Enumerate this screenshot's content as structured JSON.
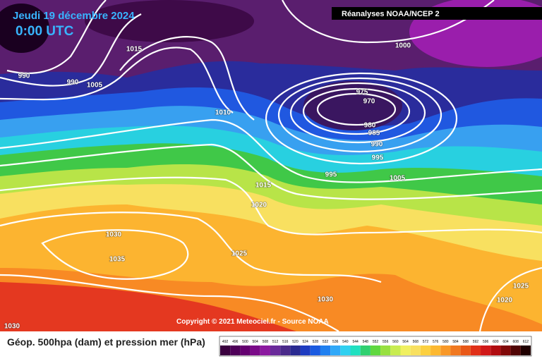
{
  "header": {
    "date": "Jeudi 19 décembre 2024",
    "time": "0:00 UTC",
    "source": "Réanalyses NOAA/NCEP 2"
  },
  "copyright": "Copyright © 2021 Meteociel.fr - Source NOAA",
  "legend": "Géop. 500hpa (dam) et pression mer (hPa)",
  "isobar_labels": [
    1015,
    1000,
    990,
    990,
    1005,
    1010,
    975,
    970,
    980,
    985,
    990,
    995,
    995,
    1005,
    1015,
    1020,
    1030,
    1035,
    1025,
    1030,
    1025,
    1020,
    1030
  ],
  "colorbar": {
    "ticks": [
      492,
      496,
      500,
      504,
      508,
      512,
      516,
      520,
      524,
      528,
      532,
      536,
      540,
      544,
      548,
      552,
      556,
      560,
      564,
      568,
      572,
      576,
      580,
      584,
      588,
      592,
      596,
      600,
      604,
      608,
      612
    ],
    "colors": [
      "#3a003e",
      "#4e0058",
      "#640070",
      "#7a0a88",
      "#8c1aa0",
      "#6a2a9a",
      "#4a2a8a",
      "#2a2a90",
      "#1e3cc0",
      "#1a5ae0",
      "#2080f0",
      "#30a8f8",
      "#30d0f0",
      "#20e0c0",
      "#30d070",
      "#60d840",
      "#98e040",
      "#c8ec50",
      "#f0f060",
      "#f8e060",
      "#fcd040",
      "#fcb830",
      "#f89828",
      "#f07820",
      "#e85818",
      "#e03018",
      "#d01818",
      "#b00c10",
      "#800808",
      "#500404",
      "#200000"
    ]
  }
}
